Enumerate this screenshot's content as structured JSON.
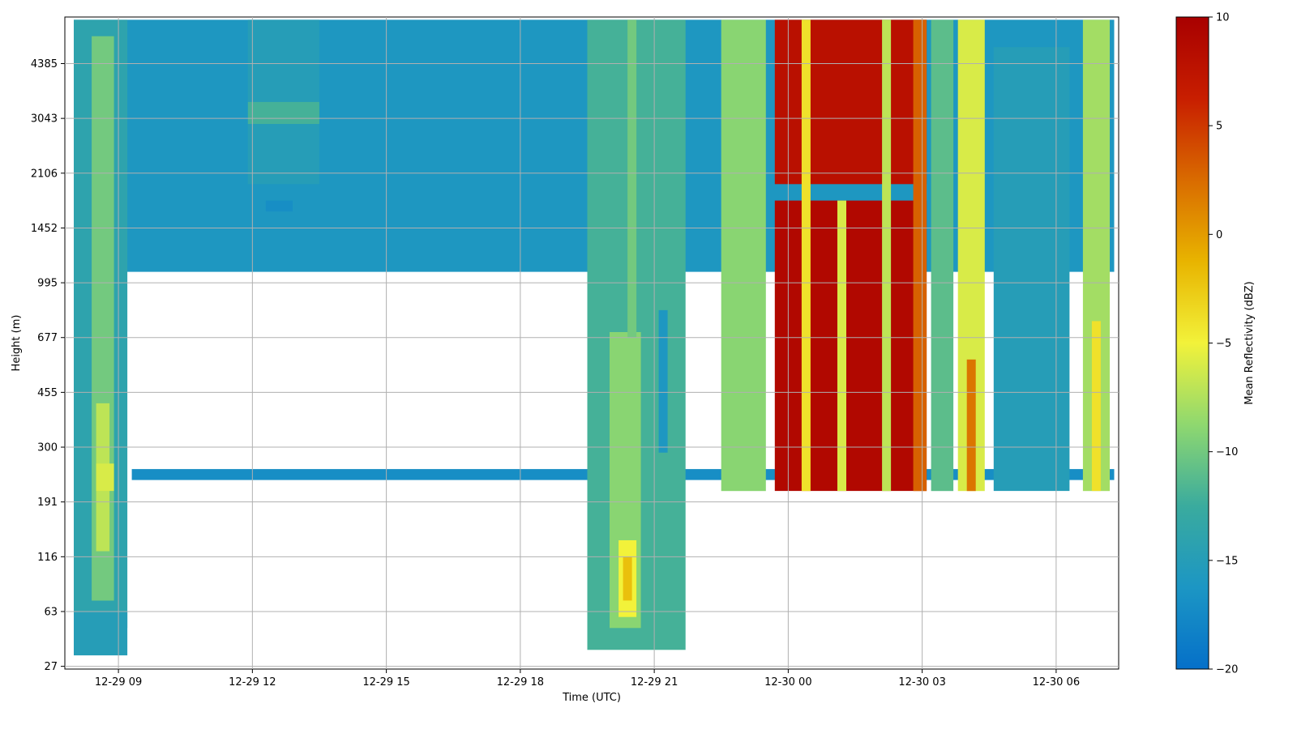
{
  "chart_data": {
    "type": "heatmap",
    "title": "",
    "xlabel": "Time (UTC)",
    "ylabel": "Height (m)",
    "x_ticks": [
      "12-29 09",
      "12-29 12",
      "12-29 15",
      "12-29 18",
      "12-29 21",
      "12-30 00",
      "12-30 03",
      "12-30 06"
    ],
    "x_tick_hours": [
      9,
      12,
      15,
      18,
      21,
      24,
      27,
      30
    ],
    "xlim_hours": [
      7.8,
      31.4
    ],
    "y_ticks": [
      "4385",
      "3043",
      "2106",
      "1452",
      "995",
      "677",
      "455",
      "300",
      "191",
      "116",
      "63",
      "27"
    ],
    "ylim_levels": [
      -0.05,
      11.85
    ],
    "grid": true,
    "colorbar": {
      "label": "Mean Reflectivity (dBZ)",
      "min": -20,
      "max": 10,
      "ticks": [
        "10",
        "5",
        "0",
        "−5",
        "−10",
        "−15",
        "−20"
      ],
      "tick_values": [
        10,
        5,
        0,
        -5,
        -10,
        -15,
        -20
      ],
      "colors": [
        "#0570c9",
        "#1c96c4",
        "#3aab9e",
        "#8fd86f",
        "#f2f23a",
        "#e8b400",
        "#d96b00",
        "#c81e00",
        "#a80000"
      ]
    },
    "regions": [
      {
        "x": [
          8.0,
          31.3
        ],
        "y": [
          7.2,
          11.8
        ],
        "dbz": -16
      },
      {
        "x": [
          8.0,
          9.2
        ],
        "y": [
          0.7,
          11.8
        ],
        "dbz": -14
      },
      {
        "x": [
          8.4,
          8.9
        ],
        "y": [
          1.2,
          11.5
        ],
        "dbz": -10
      },
      {
        "x": [
          8.5,
          8.8
        ],
        "y": [
          2.1,
          4.8
        ],
        "dbz": -7
      },
      {
        "x": [
          8.5,
          8.9
        ],
        "y": [
          3.2,
          3.7
        ],
        "dbz": -6
      },
      {
        "x": [
          8.0,
          9.2
        ],
        "y": [
          0.2,
          1.0
        ],
        "dbz": -15
      },
      {
        "x": [
          12.3,
          12.9
        ],
        "y": [
          8.3,
          8.5
        ],
        "dbz": -17
      },
      {
        "x": [
          9.3,
          31.3
        ],
        "y": [
          3.4,
          3.6
        ],
        "dbz": -17
      },
      {
        "x": [
          11.9,
          13.5
        ],
        "y": [
          8.8,
          11.8
        ],
        "dbz": -15
      },
      {
        "x": [
          11.9,
          13.5
        ],
        "y": [
          9.9,
          10.3
        ],
        "dbz": -12
      },
      {
        "x": [
          19.5,
          21.7
        ],
        "y": [
          0.3,
          11.8
        ],
        "dbz": -12
      },
      {
        "x": [
          20.0,
          20.7
        ],
        "y": [
          0.7,
          6.1
        ],
        "dbz": -9
      },
      {
        "x": [
          20.2,
          20.6
        ],
        "y": [
          0.9,
          2.3
        ],
        "dbz": -5
      },
      {
        "x": [
          20.3,
          20.5
        ],
        "y": [
          1.2,
          2.0
        ],
        "dbz": -2
      },
      {
        "x": [
          20.4,
          20.6
        ],
        "y": [
          6.0,
          11.8
        ],
        "dbz": -10
      },
      {
        "x": [
          21.1,
          21.3
        ],
        "y": [
          3.9,
          6.5
        ],
        "dbz": -16
      },
      {
        "x": [
          22.5,
          23.5
        ],
        "y": [
          3.2,
          11.8
        ],
        "dbz": -9
      },
      {
        "x": [
          23.7,
          27.1
        ],
        "y": [
          3.2,
          8.5
        ],
        "dbz": 9
      },
      {
        "x": [
          23.7,
          27.1
        ],
        "y": [
          8.8,
          11.8
        ],
        "dbz": 8
      },
      {
        "x": [
          24.3,
          24.5
        ],
        "y": [
          3.2,
          11.8
        ],
        "dbz": -4
      },
      {
        "x": [
          25.1,
          25.3
        ],
        "y": [
          3.2,
          8.5
        ],
        "dbz": -6
      },
      {
        "x": [
          26.1,
          26.3
        ],
        "y": [
          3.2,
          11.8
        ],
        "dbz": -7
      },
      {
        "x": [
          26.8,
          27.1
        ],
        "y": [
          3.2,
          11.8
        ],
        "dbz": 3
      },
      {
        "x": [
          27.2,
          27.7
        ],
        "y": [
          3.2,
          11.8
        ],
        "dbz": -11
      },
      {
        "x": [
          27.8,
          28.4
        ],
        "y": [
          3.2,
          11.8
        ],
        "dbz": -6
      },
      {
        "x": [
          28.0,
          28.2
        ],
        "y": [
          3.2,
          5.6
        ],
        "dbz": 2
      },
      {
        "x": [
          28.6,
          30.3
        ],
        "y": [
          3.2,
          11.3
        ],
        "dbz": -15
      },
      {
        "x": [
          30.6,
          31.2
        ],
        "y": [
          3.2,
          11.8
        ],
        "dbz": -8
      },
      {
        "x": [
          30.8,
          31.0
        ],
        "y": [
          3.2,
          6.3
        ],
        "dbz": -4
      }
    ]
  }
}
